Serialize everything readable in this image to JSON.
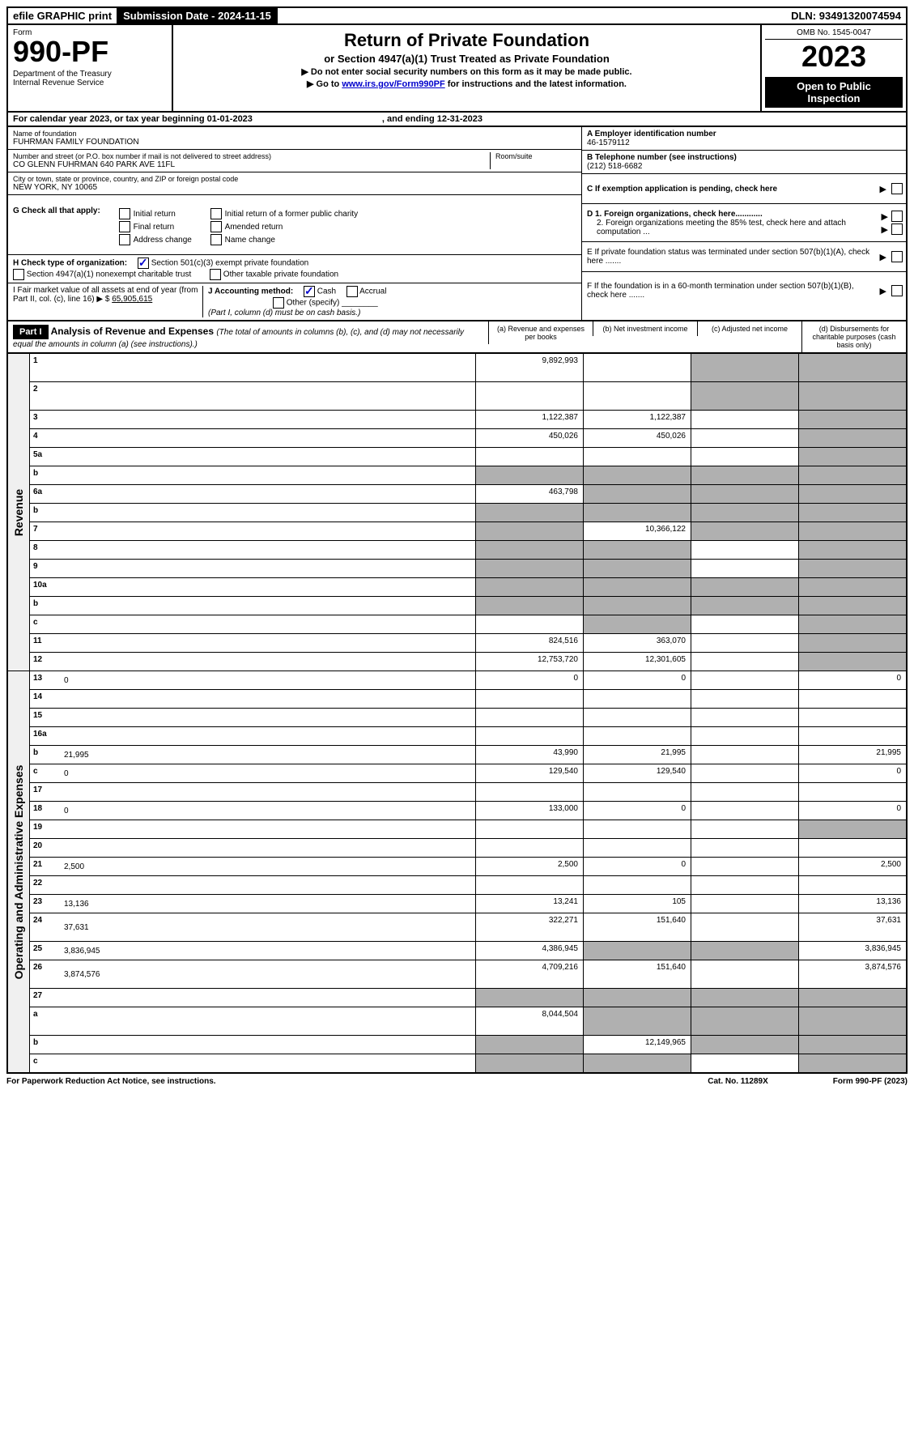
{
  "topbar": {
    "efile": "efile GRAPHIC print",
    "submission_label": "Submission Date - ",
    "submission_date": "2024-11-15",
    "dln_label": "DLN: ",
    "dln": "93491320074594"
  },
  "header": {
    "form_label": "Form",
    "form_num": "990-PF",
    "dept1": "Department of the Treasury",
    "dept2": "Internal Revenue Service",
    "title": "Return of Private Foundation",
    "subtitle": "or Section 4947(a)(1) Trust Treated as Private Foundation",
    "note1": "▶ Do not enter social security numbers on this form as it may be made public.",
    "note2_pre": "▶ Go to ",
    "note2_link": "www.irs.gov/Form990PF",
    "note2_post": " for instructions and the latest information.",
    "omb": "OMB No. 1545-0047",
    "year": "2023",
    "open1": "Open to Public",
    "open2": "Inspection"
  },
  "calendar": {
    "line": "For calendar year 2023, or tax year beginning 01-01-2023",
    "ending": ", and ending 12-31-2023"
  },
  "entity": {
    "name_label": "Name of foundation",
    "name": "FUHRMAN FAMILY FOUNDATION",
    "addr_label": "Number and street (or P.O. box number if mail is not delivered to street address)",
    "addr": "CO GLENN FUHRMAN 640 PARK AVE 11FL",
    "room_label": "Room/suite",
    "city_label": "City or town, state or province, country, and ZIP or foreign postal code",
    "city": "NEW YORK, NY  10065",
    "a_label": "A Employer identification number",
    "a_val": "46-1579112",
    "b_label": "B Telephone number (see instructions)",
    "b_val": "(212) 518-6682",
    "c_label": "C If exemption application is pending, check here"
  },
  "checks": {
    "g_label": "G Check all that apply:",
    "g1": "Initial return",
    "g2": "Final return",
    "g3": "Address change",
    "g4": "Initial return of a former public charity",
    "g5": "Amended return",
    "g6": "Name change",
    "h_label": "H Check type of organization:",
    "h1": "Section 501(c)(3) exempt private foundation",
    "h2": "Section 4947(a)(1) nonexempt charitable trust",
    "h3": "Other taxable private foundation",
    "i_label": "I Fair market value of all assets at end of year (from Part II, col. (c), line 16)",
    "i_arrow": "▶ $",
    "i_val": "65,905,615",
    "j_label": "J Accounting method:",
    "j1": "Cash",
    "j2": "Accrual",
    "j3": "Other (specify)",
    "j_note": "(Part I, column (d) must be on cash basis.)",
    "d1": "D 1. Foreign organizations, check here............",
    "d2": "2. Foreign organizations meeting the 85% test, check here and attach computation ...",
    "e": "E  If private foundation status was terminated under section 507(b)(1)(A), check here .......",
    "f": "F  If the foundation is in a 60-month termination under section 507(b)(1)(B), check here .......",
    "arrow": "▶"
  },
  "part1": {
    "label": "Part I",
    "title": "Analysis of Revenue and Expenses ",
    "desc": "(The total of amounts in columns (b), (c), and (d) may not necessarily equal the amounts in column (a) (see instructions).)",
    "col_a": "(a) Revenue and expenses per books",
    "col_b": "(b) Net investment income",
    "col_c": "(c) Adjusted net income",
    "col_d": "(d) Disbursements for charitable purposes (cash basis only)"
  },
  "sections": {
    "revenue": "Revenue",
    "expenses": "Operating and Administrative Expenses"
  },
  "rows": [
    {
      "n": "1",
      "d": "",
      "a": "9,892,993",
      "b": "",
      "c": "",
      "tall": true,
      "cg": true,
      "dg": true
    },
    {
      "n": "2",
      "d": "",
      "a": "",
      "b": "",
      "c": "",
      "tall": true,
      "cg": true,
      "dg": true
    },
    {
      "n": "3",
      "d": "",
      "a": "1,122,387",
      "b": "1,122,387",
      "c": "",
      "cg": false,
      "dg": true
    },
    {
      "n": "4",
      "d": "",
      "a": "450,026",
      "b": "450,026",
      "c": "",
      "dg": true
    },
    {
      "n": "5a",
      "d": "",
      "a": "",
      "b": "",
      "c": "",
      "dg": true
    },
    {
      "n": "b",
      "d": "",
      "a": "",
      "b": "",
      "c": "",
      "ag": true,
      "bg": true,
      "cg": true,
      "dg": true
    },
    {
      "n": "6a",
      "d": "",
      "a": "463,798",
      "b": "",
      "c": "",
      "bg": true,
      "cg": true,
      "dg": true
    },
    {
      "n": "b",
      "d": "",
      "a": "",
      "b": "",
      "c": "",
      "ag": true,
      "bg": true,
      "cg": true,
      "dg": true
    },
    {
      "n": "7",
      "d": "",
      "a": "",
      "b": "10,366,122",
      "c": "",
      "ag": true,
      "cg": true,
      "dg": true
    },
    {
      "n": "8",
      "d": "",
      "a": "",
      "b": "",
      "c": "",
      "ag": true,
      "bg": true,
      "dg": true
    },
    {
      "n": "9",
      "d": "",
      "a": "",
      "b": "",
      "c": "",
      "ag": true,
      "bg": true,
      "dg": true
    },
    {
      "n": "10a",
      "d": "",
      "a": "",
      "b": "",
      "c": "",
      "ag": true,
      "bg": true,
      "cg": true,
      "dg": true
    },
    {
      "n": "b",
      "d": "",
      "a": "",
      "b": "",
      "c": "",
      "ag": true,
      "bg": true,
      "cg": true,
      "dg": true
    },
    {
      "n": "c",
      "d": "",
      "a": "",
      "b": "",
      "c": "",
      "bg": true,
      "dg": true
    },
    {
      "n": "11",
      "d": "",
      "a": "824,516",
      "b": "363,070",
      "c": "",
      "dg": true
    },
    {
      "n": "12",
      "d": "",
      "a": "12,753,720",
      "b": "12,301,605",
      "c": "",
      "dg": true
    }
  ],
  "exp_rows": [
    {
      "n": "13",
      "d": "0",
      "a": "0",
      "b": "0",
      "c": ""
    },
    {
      "n": "14",
      "d": "",
      "a": "",
      "b": "",
      "c": ""
    },
    {
      "n": "15",
      "d": "",
      "a": "",
      "b": "",
      "c": ""
    },
    {
      "n": "16a",
      "d": "",
      "a": "",
      "b": "",
      "c": ""
    },
    {
      "n": "b",
      "d": "21,995",
      "a": "43,990",
      "b": "21,995",
      "c": ""
    },
    {
      "n": "c",
      "d": "0",
      "a": "129,540",
      "b": "129,540",
      "c": ""
    },
    {
      "n": "17",
      "d": "",
      "a": "",
      "b": "",
      "c": ""
    },
    {
      "n": "18",
      "d": "0",
      "a": "133,000",
      "b": "0",
      "c": ""
    },
    {
      "n": "19",
      "d": "",
      "a": "",
      "b": "",
      "c": "",
      "dg": true
    },
    {
      "n": "20",
      "d": "",
      "a": "",
      "b": "",
      "c": ""
    },
    {
      "n": "21",
      "d": "2,500",
      "a": "2,500",
      "b": "0",
      "c": ""
    },
    {
      "n": "22",
      "d": "",
      "a": "",
      "b": "",
      "c": ""
    },
    {
      "n": "23",
      "d": "13,136",
      "a": "13,241",
      "b": "105",
      "c": ""
    },
    {
      "n": "24",
      "d": "37,631",
      "a": "322,271",
      "b": "151,640",
      "c": "",
      "tall": true
    },
    {
      "n": "25",
      "d": "3,836,945",
      "a": "4,386,945",
      "b": "",
      "c": "",
      "bg": true,
      "cg": true
    },
    {
      "n": "26",
      "d": "3,874,576",
      "a": "4,709,216",
      "b": "151,640",
      "c": "",
      "tall": true
    },
    {
      "n": "27",
      "d": "",
      "a": "",
      "b": "",
      "c": "",
      "ag": true,
      "bg": true,
      "cg": true,
      "dg": true
    },
    {
      "n": "a",
      "d": "",
      "a": "8,044,504",
      "b": "",
      "c": "",
      "tall": true,
      "bg": true,
      "cg": true,
      "dg": true
    },
    {
      "n": "b",
      "d": "",
      "a": "",
      "b": "12,149,965",
      "c": "",
      "ag": true,
      "cg": true,
      "dg": true
    },
    {
      "n": "c",
      "d": "",
      "a": "",
      "b": "",
      "c": "",
      "ag": true,
      "bg": true,
      "dg": true
    }
  ],
  "footer": {
    "left": "For Paperwork Reduction Act Notice, see instructions.",
    "center": "Cat. No. 11289X",
    "right": "Form 990-PF (2023)"
  }
}
